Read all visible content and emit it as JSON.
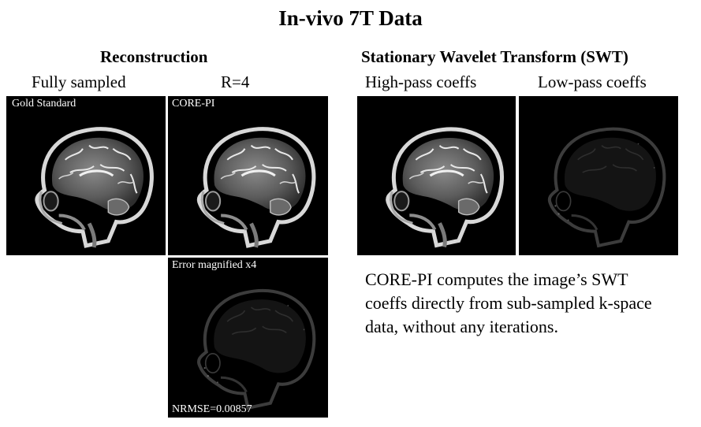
{
  "title": "In-vivo 7T Data",
  "reconstruction": {
    "heading": "Reconstruction",
    "col_fully": "Fully sampled",
    "col_r4": "R=4",
    "panel_gold": "Gold Standard",
    "panel_corepi": "CORE-PI",
    "panel_error": "Error magnified x4",
    "error_metric": "NRMSE=0.00857"
  },
  "swt": {
    "heading": "Stationary Wavelet Transform (SWT)",
    "col_high": "High-pass coeffs",
    "col_low": "Low-pass coeffs"
  },
  "note": {
    "line1": "CORE-PI computes the image’s SWT",
    "line2": "coeffs directly from sub-sampled k-space",
    "line3": "data, without any iterations."
  }
}
